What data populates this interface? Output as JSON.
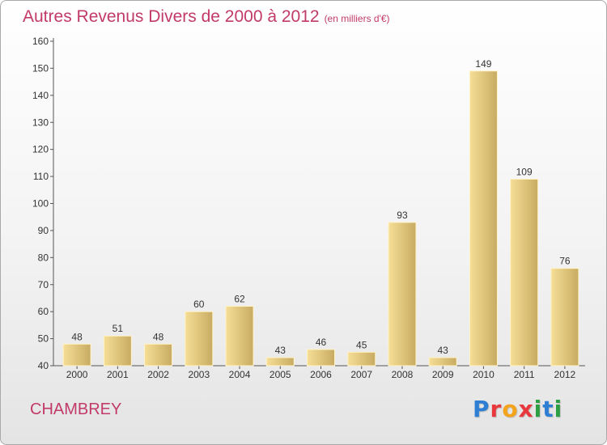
{
  "header": {
    "title": "Autres Revenus Divers de 2000 à 2012",
    "subtitle": "(en milliers d'€)"
  },
  "footer": {
    "place": "CHAMBREY",
    "brand_letters": [
      {
        "ch": "P",
        "color": "#2e7fd4"
      },
      {
        "ch": "r",
        "color": "#e8383d"
      },
      {
        "ch": "o",
        "color": "#f3a31c"
      },
      {
        "ch": "x",
        "color": "#e8383d"
      },
      {
        "ch": "i",
        "color": "#2e9e44"
      },
      {
        "ch": "t",
        "color": "#2e7fd4"
      },
      {
        "ch": "i",
        "color": "#2e9e44"
      }
    ]
  },
  "colors": {
    "accent": "#c23a6a",
    "bar_light": "#f6de96",
    "bar_dark": "#c8ab62"
  },
  "chart_data": {
    "type": "bar",
    "title": "Autres Revenus Divers de 2000 à 2012",
    "subtitle": "(en milliers d'€)",
    "xlabel": "",
    "ylabel": "",
    "categories": [
      "2000",
      "2001",
      "2002",
      "2003",
      "2004",
      "2005",
      "2006",
      "2007",
      "2008",
      "2009",
      "2010",
      "2011",
      "2012"
    ],
    "values": [
      48,
      51,
      48,
      60,
      62,
      43,
      46,
      45,
      93,
      43,
      149,
      109,
      76
    ],
    "yticks": [
      40,
      50,
      60,
      70,
      80,
      90,
      100,
      110,
      120,
      130,
      140,
      150,
      160
    ],
    "ylim": [
      40,
      160
    ],
    "grid": false,
    "legend": "none",
    "data_labels": true
  }
}
